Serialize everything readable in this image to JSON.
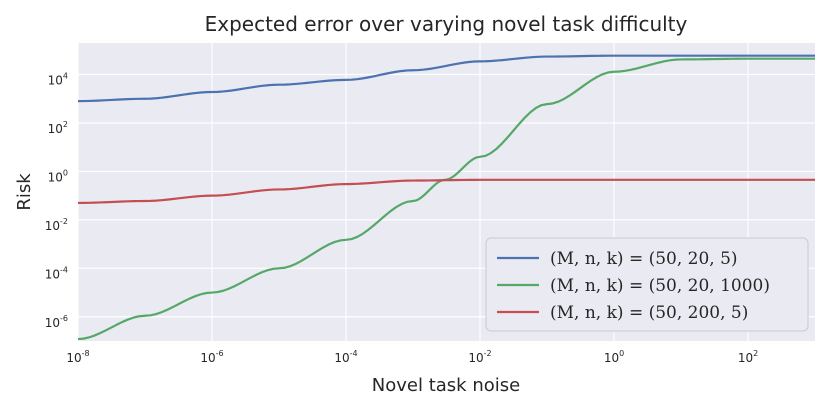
{
  "chart_data": {
    "type": "line",
    "title": "Expected error over varying novel task difficulty",
    "xlabel": "Novel task noise",
    "ylabel": "Risk",
    "xscale": "log",
    "yscale": "log",
    "xlim": [
      1e-08,
      1000
    ],
    "ylim": [
      1e-07,
      200000.0
    ],
    "xticks": [
      {
        "value": 1e-08,
        "base": "10",
        "exp": "-8"
      },
      {
        "value": 1e-06,
        "base": "10",
        "exp": "-6"
      },
      {
        "value": 0.0001,
        "base": "10",
        "exp": "-4"
      },
      {
        "value": 0.01,
        "base": "10",
        "exp": "-2"
      },
      {
        "value": 1,
        "base": "10",
        "exp": "0"
      },
      {
        "value": 100,
        "base": "10",
        "exp": "2"
      }
    ],
    "yticks": [
      {
        "value": 1e-06,
        "base": "10",
        "exp": "-6"
      },
      {
        "value": 0.0001,
        "base": "10",
        "exp": "-4"
      },
      {
        "value": 0.01,
        "base": "10",
        "exp": "-2"
      },
      {
        "value": 1,
        "base": "10",
        "exp": "0"
      },
      {
        "value": 100,
        "base": "10",
        "exp": "2"
      },
      {
        "value": 10000,
        "base": "10",
        "exp": "4"
      }
    ],
    "grid": true,
    "legend_position": "lower-right",
    "series": [
      {
        "name": "(M, n, k) = (50, 20, 5)",
        "color": "#4c72b0",
        "x": [
          1e-08,
          1e-07,
          1e-06,
          1e-05,
          0.0001,
          0.001,
          0.01,
          0.1,
          1,
          10,
          100,
          1000
        ],
        "y": [
          800,
          1000,
          1900,
          3800,
          6000,
          15000,
          35000,
          55000,
          60000,
          60000,
          60000,
          60000
        ]
      },
      {
        "name": "(M, n, k) = (50, 20, 1000)",
        "color": "#55a868",
        "x": [
          1e-08,
          1e-07,
          1e-06,
          1e-05,
          0.0001,
          0.001,
          0.003,
          0.01,
          0.1,
          1,
          10,
          100,
          1000
        ],
        "y": [
          1.2e-07,
          1.1e-06,
          1e-05,
          0.0001,
          0.0015,
          0.06,
          0.45,
          4,
          600,
          13000,
          42000,
          45000,
          45000
        ]
      },
      {
        "name": "(M, n, k) = (50, 200, 5)",
        "color": "#c44e52",
        "x": [
          1e-08,
          1e-07,
          1e-06,
          1e-05,
          0.0001,
          0.001,
          0.01,
          0.1,
          1,
          10,
          100,
          1000
        ],
        "y": [
          0.05,
          0.06,
          0.1,
          0.18,
          0.3,
          0.42,
          0.45,
          0.45,
          0.45,
          0.45,
          0.45,
          0.45
        ]
      }
    ]
  }
}
